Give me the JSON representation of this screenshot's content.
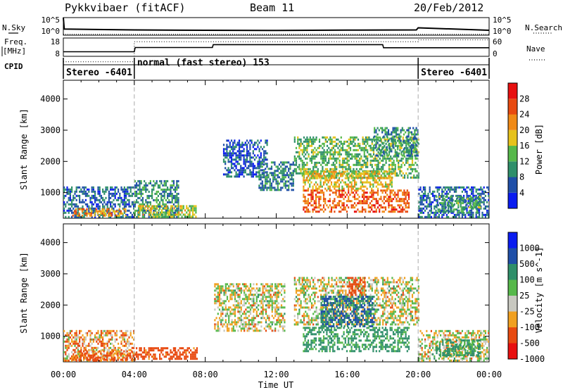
{
  "header": {
    "station": "Pykkvibaer (fitACF)",
    "beam": "Beam 11",
    "date": "20/Feb/2012"
  },
  "side_labels": {
    "nsky": "N.Sky",
    "nsearch": "N.Search",
    "freq": "Freq.",
    "freq_unit": "[MHz]",
    "nave": "Nave",
    "cpid": "CPID"
  },
  "cpid_segments": [
    {
      "label": "Stereo -6401",
      "start_h": 0,
      "end_h": 4
    },
    {
      "label": "normal (fast stereo) 153",
      "start_h": 4,
      "end_h": 20
    },
    {
      "label": "Stereo -6401",
      "start_h": 20,
      "end_h": 24
    }
  ],
  "colors": {
    "power_scale": [
      "#0a1cf0",
      "#1f4fa8",
      "#2f8f6a",
      "#56b84a",
      "#e6c21c",
      "#f08a16",
      "#e84a10",
      "#e81010"
    ],
    "velocity_scale": [
      "#e81010",
      "#e84a10",
      "#f0a020",
      "#c8c8c0",
      "#56b84a",
      "#2f8f6a",
      "#1f4fa8",
      "#0a1cf0"
    ],
    "ground_scatter": "#b8b8b2"
  },
  "chart_data": [
    {
      "type": "line",
      "panel": "noise",
      "x_unit": "hours UT",
      "yticks_left": [
        "10^5",
        "10^0"
      ],
      "yticks_right": [
        "10^5",
        "10^0"
      ],
      "series": [
        {
          "name": "N.Sky",
          "x": [
            0,
            0.05,
            4,
            8,
            12,
            16,
            19.9,
            20,
            24
          ],
          "y": [
            1,
            0.35,
            0.3,
            0.28,
            0.27,
            0.29,
            0.3,
            0.42,
            0.28
          ]
        },
        {
          "name": "N.Search",
          "x": [
            0,
            24
          ],
          "y": [
            0.05,
            0.05
          ]
        }
      ]
    },
    {
      "type": "line",
      "panel": "frequency",
      "yticks_left": [
        "18",
        "8"
      ],
      "yticks_right": [
        "60",
        "0"
      ],
      "series": [
        {
          "name": "Freq.",
          "x": [
            0,
            4,
            4.05,
            8.4,
            8.45,
            18,
            18.05,
            20,
            24
          ],
          "y": [
            10.5,
            10.5,
            12.8,
            12.8,
            14.4,
            14.4,
            12.7,
            12.7,
            12.7
          ]
        },
        {
          "name": "Nave",
          "x": [
            0,
            4,
            4,
            20,
            20,
            24
          ],
          "y": [
            5,
            5,
            16,
            16,
            17,
            17
          ]
        }
      ]
    },
    {
      "type": "heatmap",
      "panel": "power",
      "title": "Power",
      "x": [
        "00:00",
        "04:00",
        "08:00",
        "12:00",
        "16:00",
        "20:00",
        "00:00"
      ],
      "xlim": [
        0,
        24
      ],
      "ylabel": "Slant Range [km]",
      "ylim": [
        180,
        4600
      ],
      "yticks": [
        1000,
        2000,
        3000,
        4000
      ],
      "colorbar": {
        "label": "Power [dB]",
        "ticks": [
          "28",
          "24",
          "20",
          "16",
          "12",
          "8",
          "4"
        ],
        "range": [
          0,
          32
        ]
      },
      "regions": [
        {
          "t0": 0.0,
          "t1": 4.0,
          "r0": 200,
          "r1": 1200,
          "v": 7
        },
        {
          "t0": 0.5,
          "t1": 3.5,
          "r0": 250,
          "r1": 500,
          "v": 22
        },
        {
          "t0": 4.0,
          "t1": 6.5,
          "r0": 200,
          "r1": 1400,
          "v": 10
        },
        {
          "t0": 4.2,
          "t1": 7.5,
          "r0": 250,
          "r1": 600,
          "v": 16
        },
        {
          "t0": 9.0,
          "t1": 11.5,
          "r0": 1500,
          "r1": 2700,
          "v": 6
        },
        {
          "t0": 11.0,
          "t1": 13.0,
          "r0": 1100,
          "r1": 2000,
          "v": 9
        },
        {
          "t0": 13.0,
          "t1": 20.0,
          "r0": 1500,
          "r1": 2800,
          "v": 13
        },
        {
          "t0": 13.5,
          "t1": 19.5,
          "r0": 400,
          "r1": 1100,
          "v": 25
        },
        {
          "t0": 13.5,
          "t1": 18.5,
          "r0": 1100,
          "r1": 1700,
          "v": 18
        },
        {
          "t0": 17.5,
          "t1": 20.0,
          "r0": 2200,
          "r1": 3100,
          "v": 10
        },
        {
          "t0": 20.0,
          "t1": 24.0,
          "r0": 200,
          "r1": 1200,
          "v": 7
        },
        {
          "t0": 21.0,
          "t1": 23.5,
          "r0": 400,
          "r1": 900,
          "v": 12
        }
      ]
    },
    {
      "type": "heatmap",
      "panel": "velocity",
      "title": "Velocity",
      "x": [
        "00:00",
        "04:00",
        "08:00",
        "12:00",
        "16:00",
        "20:00",
        "00:00"
      ],
      "xlim": [
        0,
        24
      ],
      "xlabel": "Time UT",
      "ylabel": "Slant Range [km]",
      "ylim": [
        180,
        4600
      ],
      "yticks": [
        1000,
        2000,
        3000,
        4000
      ],
      "colorbar": {
        "label": "Velocity [m s^-1]",
        "ticks": [
          "1000",
          "500",
          "100",
          "25",
          "-25",
          "-100",
          "-500",
          "-1000"
        ],
        "range": [
          -1000,
          1000
        ]
      },
      "regions": [
        {
          "t0": 0.0,
          "t1": 4.0,
          "r0": 200,
          "r1": 1200,
          "v": -60
        },
        {
          "t0": 0.5,
          "t1": 4.0,
          "r0": 250,
          "r1": 550,
          "v": -150
        },
        {
          "t0": 4.0,
          "t1": 7.5,
          "r0": 250,
          "r1": 650,
          "v": -200
        },
        {
          "t0": 8.5,
          "t1": 12.5,
          "r0": 1200,
          "r1": 2700,
          "v": 0
        },
        {
          "t0": 13.0,
          "t1": 20.0,
          "r0": 1400,
          "r1": 2900,
          "v": 0
        },
        {
          "t0": 13.5,
          "t1": 19.5,
          "r0": 500,
          "r1": 1300,
          "v": 150
        },
        {
          "t0": 14.5,
          "t1": 17.5,
          "r0": 1300,
          "r1": 2300,
          "v": 500
        },
        {
          "t0": 16.0,
          "t1": 17.0,
          "r0": 2300,
          "r1": 2900,
          "v": -300
        },
        {
          "t0": 20.0,
          "t1": 24.0,
          "r0": 200,
          "r1": 1200,
          "v": 0
        },
        {
          "t0": 21.0,
          "t1": 23.5,
          "r0": 400,
          "r1": 900,
          "v": 150
        }
      ]
    }
  ]
}
